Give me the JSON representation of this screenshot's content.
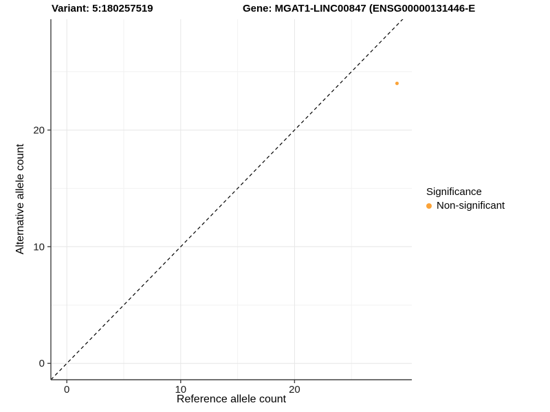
{
  "titles": {
    "variant": "Variant: 5:180257519",
    "gene": "Gene: MGAT1-LINC00847 (ENSG00000131446-E"
  },
  "chart_data": {
    "type": "scatter",
    "xlabel": "Reference allele count",
    "ylabel": "Alternative allele count",
    "x_ticks": [
      0,
      10,
      20
    ],
    "y_ticks": [
      0,
      10,
      20
    ],
    "x_minor_ticks": [
      5,
      15,
      25
    ],
    "y_minor_ticks": [
      5,
      15,
      25
    ],
    "xlim": [
      -1.4,
      30.3
    ],
    "ylim": [
      -1.4,
      29.5
    ],
    "grid": true,
    "identity_line": {
      "style": "dashed",
      "slope": 1,
      "intercept": 0
    },
    "series": [
      {
        "name": "Non-significant",
        "color": "#FBA338",
        "point_radius": 2.5,
        "points": [
          {
            "x": 29,
            "y": 24
          }
        ]
      }
    ],
    "legend": {
      "title": "Significance",
      "position": "right",
      "items": [
        {
          "label": "Non-significant",
          "color": "#FBA338"
        }
      ]
    }
  },
  "colors": {
    "background": "#FFFFFF",
    "grid_major": "#E6E6E6",
    "grid_minor": "#F2F2F2",
    "axis_line": "#404040",
    "tick_label": "#1A1A1A",
    "identity_line": "#000000",
    "text": "#000000"
  }
}
